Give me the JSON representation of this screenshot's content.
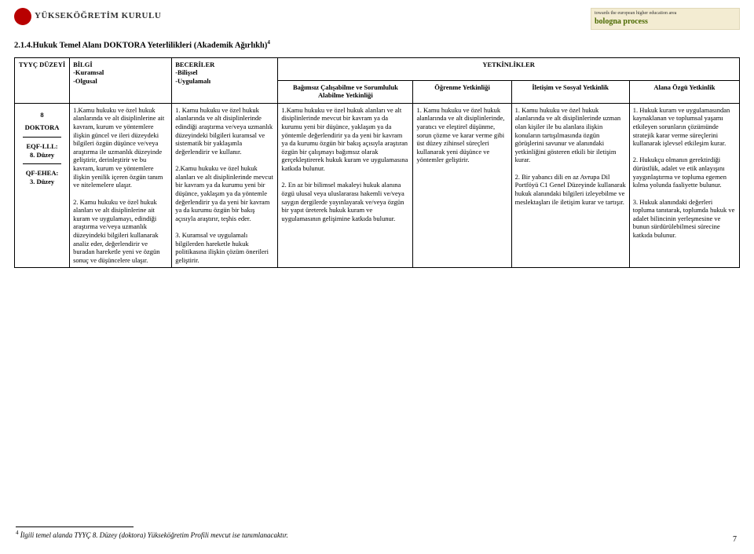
{
  "logo_left_text": "YÜKSEKÖĞRETİM KURULU",
  "logo_right_top": "towards the european higher education area",
  "logo_right_brand": "bologna process",
  "section_title": "2.1.4.Hukuk Temel Alanı DOKTORA Yeterlilikleri (Akademik Ağırlıklı)",
  "section_sup": "4",
  "header": {
    "level": "TYYÇ DÜZEYİ",
    "bilgi_title": "BİLGİ",
    "bilgi_sub1": "-Kuramsal",
    "bilgi_sub2": "-Olgusal",
    "beceri_title": "BECERİLER",
    "beceri_sub1": "-Bilişsel",
    "beceri_sub2": "-Uygulamalı",
    "yetkinlik_title": "YETKİNLİKLER",
    "bagimsiz": "Bağımsız Çalışabilme ve Sorumluluk Alabilme Yetkinliği",
    "ogrenme": "Öğrenme Yetkinliği",
    "iletisim": "İletişim ve Sosyal Yetkinlik",
    "alana": "Alana Özgü Yetkinlik"
  },
  "level": {
    "l1": "8",
    "l2": "DOKTORA",
    "l3a": "EQF-LLL:",
    "l3b": "8. Düzey",
    "l4a": "QF-EHEA:",
    "l4b": "3. Düzey"
  },
  "cells": {
    "bilgi": "1.Kamu hukuku ve özel hukuk alanlarında ve alt disiplinlerine ait kavram, kurum ve yöntemlere ilişkin güncel ve ileri düzeydeki bilgileri özgün düşünce ve/veya araştırma ile uzmanlık düzeyinde geliştirir, derinleştirir ve bu kavram, kurum ve yöntemlere ilişkin yenilik içeren özgün tanım ve nitelemelere ulaşır.\n\n2. Kamu hukuku ve özel hukuk alanları ve alt disiplinlerine ait kuram ve uygulamayı, edindiği araştırma ve/veya uzmanlık düzeyindeki bilgileri kullanarak analiz eder, değerlendirir ve buradan hareketle yeni ve özgün sonuç ve düşüncelere ulaşır.",
    "beceri": "1. Kamu hukuku ve özel hukuk alanlarında ve alt disiplinlerinde edindiği araştırma ve/veya uzmanlık düzeyindeki bilgileri kuramsal ve sistematik bir yaklaşımla değerlendirir ve kullanır.\n\n2.Kamu hukuku ve özel hukuk alanları ve alt disiplinlerinde mevcut bir kavram ya da kurumu yeni bir düşünce, yaklaşım ya da yöntemle değerlendirir ya da yeni bir kavram ya da kurumu özgün bir bakış açısıyla araştırır, teşhis eder.\n\n3. Kuramsal ve uygulamalı bilgilerden hareketle hukuk politikasına ilişkin çözüm önerileri geliştirir.",
    "bagimsiz": "1.Kamu hukuku ve özel hukuk alanları ve alt disiplinlerinde mevcut bir kavram ya da kurumu yeni bir düşünce, yaklaşım ya da yöntemle değerlendirir ya da yeni bir kavram ya da kurumu özgün bir bakış açısıyla araştıran özgün bir çalışmayı bağımsız olarak gerçekleştirerek hukuk kuram ve uygulamasına katkıda bulunur.\n\n2. En az bir bilimsel makaleyi hukuk alanına özgü ulusal veya uluslararası hakemli ve/veya saygın dergilerde yayınlayarak ve/veya özgün bir yapıt üreterek hukuk kuram ve uygulamasının gelişimine katkıda bulunur.",
    "ogrenme": "1. Kamu hukuku ve özel hukuk alanlarında ve alt disiplinlerinde, yaratıcı ve eleştirel düşünme, sorun çözme ve karar verme gibi üst düzey zihinsel süreçleri kullanarak yeni düşünce ve yöntemler geliştirir.",
    "iletisim": "1. Kamu hukuku ve özel hukuk alanlarında ve alt disiplinlerinde uzman olan kişiler ile bu alanlara ilişkin konuların tartışılmasında özgün görüşlerini savunur ve alanındaki yetkinliğini gösteren etkili bir iletişim kurar.\n\n2. Bir yabancı dili en az Avrupa Dil Portföyü C1 Genel Düzeyinde kullanarak hukuk alanındaki bilgileri izleyebilme ve meslektaşları ile iletişim kurar ve tartışır.",
    "alana": "1. Hukuk kuram ve uygulamasından kaynaklanan ve toplumsal yaşamı etkileyen sorunların çözümünde stratejik karar verme süreçlerini kullanarak işlevsel etkileşim kurar.\n\n2. Hukukçu olmanın gerektirdiği dürüstlük, adalet ve etik anlayışını yaygınlaştırma ve topluma egemen kılma yolunda faaliyette bulunur.\n\n3. Hukuk alanındaki değerleri topluma tanıtarak, toplumda hukuk ve adalet bilincinin yerleşmesine ve bunun sürdürülebilmesi sürecine katkıda bulunur."
  },
  "footnote": "İlgili temel alanda TYYÇ 8. Düzey (doktora) Yükseköğretim Profili mevcut ise tanımlanacaktır.",
  "footnote_num": "4",
  "page_num": "7"
}
